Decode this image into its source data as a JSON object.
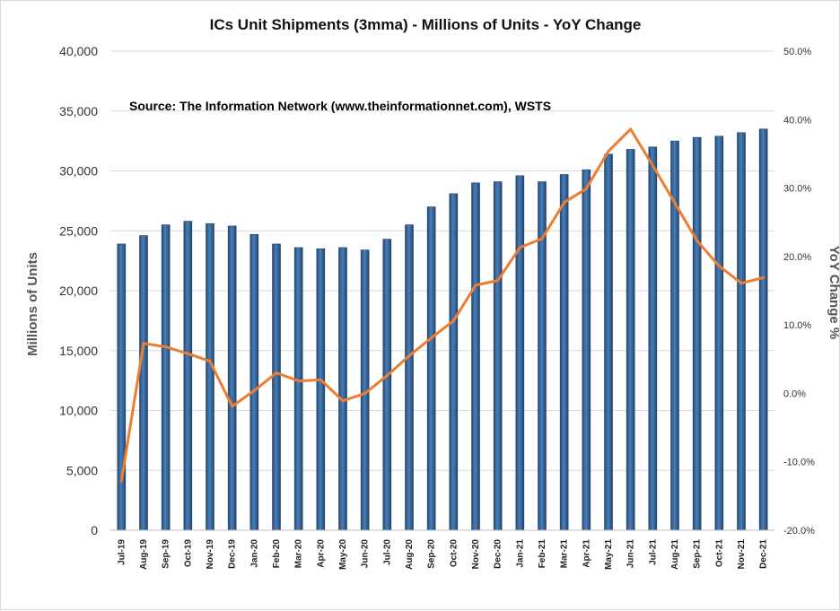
{
  "chart_data": {
    "type": "bar",
    "title": "ICs Unit Shipments (3mma) - Millions of Units - YoY Change",
    "annotation": "Source: The Information Network (www.theinformationnet.com), WSTS",
    "ylabel": "Millions of Units",
    "y2label": "YoY Change %",
    "ylim": [
      0,
      40000
    ],
    "y2lim": [
      -20,
      50
    ],
    "yticks": [
      "0",
      "5,000",
      "10,000",
      "15,000",
      "20,000",
      "25,000",
      "30,000",
      "35,000",
      "40,000"
    ],
    "y2ticks": [
      "-20.0%",
      "-10.0%",
      "0.0%",
      "10.0%",
      "20.0%",
      "30.0%",
      "40.0%",
      "50.0%"
    ],
    "categories": [
      "Jul-19",
      "Aug-19",
      "Sep-19",
      "Oct-19",
      "Nov-19",
      "Dec-19",
      "Jan-20",
      "Feb-20",
      "Mar-20",
      "Apr-20",
      "May-20",
      "Jun-20",
      "Jul-20",
      "Aug-20",
      "Sep-20",
      "Oct-20",
      "Nov-20",
      "Dec-20",
      "Jan-21",
      "Feb-21",
      "Mar-21",
      "Apr-21",
      "May-21",
      "Jun-21",
      "Jul-21",
      "Aug-21",
      "Sep-21",
      "Oct-21",
      "Nov-21",
      "Dec-21"
    ],
    "series": [
      {
        "type": "bar",
        "axis": "left",
        "values": [
          23900,
          24600,
          25500,
          25800,
          25600,
          25400,
          24700,
          23900,
          23600,
          23500,
          23600,
          23400,
          24300,
          25500,
          27000,
          28100,
          29000,
          29100,
          29600,
          29100,
          29700,
          30100,
          31400,
          31800,
          32000,
          32500,
          32800,
          32900,
          33200,
          33500
        ],
        "color": "#4a7eb5"
      },
      {
        "type": "line",
        "axis": "right",
        "values": [
          -12.8,
          7.3,
          6.8,
          5.8,
          4.7,
          -1.9,
          0.4,
          3.0,
          1.8,
          2.0,
          -1.1,
          0.0,
          2.6,
          5.5,
          8.1,
          10.6,
          15.8,
          16.5,
          21.3,
          22.6,
          27.9,
          29.9,
          35.4,
          38.6,
          33.3,
          27.8,
          22.3,
          18.6,
          16.1,
          16.9
        ],
        "color": "#ed7d31"
      }
    ],
    "grid": true,
    "legend": "none"
  }
}
